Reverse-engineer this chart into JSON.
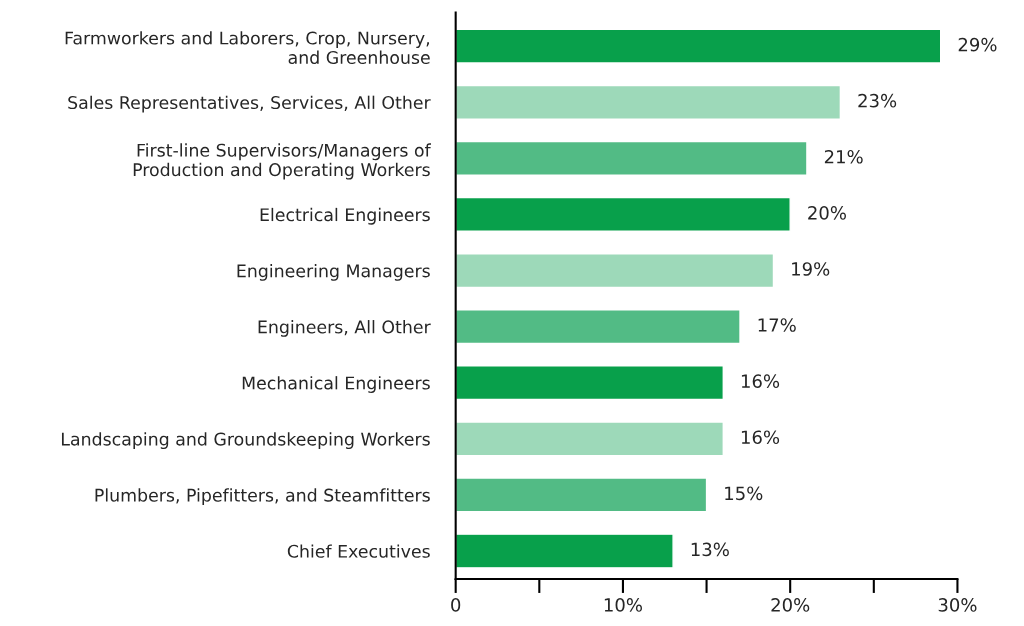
{
  "chart_data": {
    "type": "bar",
    "orientation": "horizontal",
    "categories": [
      "Farmworkers and Laborers, Crop, Nursery,\nand Greenhouse",
      "Sales Representatives, Services, All Other",
      "First-line Supervisors/Managers of\nProduction and Operating Workers",
      "Electrical Engineers",
      "Engineering Managers",
      "Engineers, All Other",
      "Mechanical Engineers",
      "Landscaping and Groundskeeping Workers",
      "Plumbers, Pipefitters, and Steamfitters",
      "Chief Executives"
    ],
    "values": [
      29,
      23,
      21,
      20,
      19,
      17,
      16,
      16,
      15,
      13
    ],
    "colors": [
      "#08a04b",
      "#9dd9b9",
      "#52bb85",
      "#08a04b",
      "#9dd9b9",
      "#52bb85",
      "#08a04b",
      "#9dd9b9",
      "#52bb85",
      "#08a04b"
    ],
    "value_labels": [
      "29%",
      "23%",
      "21%",
      "20%",
      "19%",
      "17%",
      "16%",
      "16%",
      "15%",
      "13%"
    ],
    "xlim": [
      0,
      30
    ],
    "xticks": [
      0,
      {
        "value": 5,
        "label": null
      },
      {
        "value": 10,
        "label": "10%"
      },
      {
        "value": 15,
        "label": null
      },
      {
        "value": 20,
        "label": "20%"
      },
      {
        "value": 25,
        "label": null
      },
      {
        "value": 30,
        "label": "30%"
      }
    ],
    "grid": false,
    "legend": false
  }
}
